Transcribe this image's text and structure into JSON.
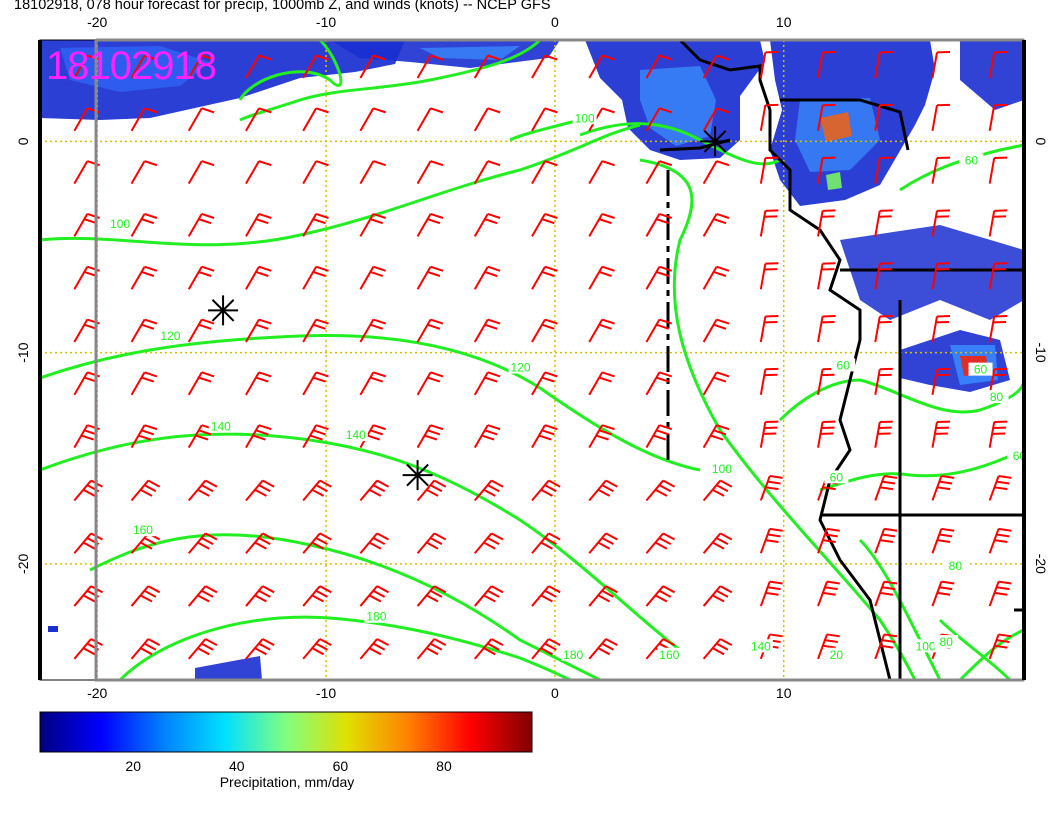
{
  "title": "18102918, 078 hour forecast for precip, 1000mb Z, and winds (knots) -- NCEP GFS",
  "timestamp_overlay": "18102918",
  "map": {
    "x_ticks": [
      "-20",
      "-10",
      "0",
      "10"
    ],
    "y_ticks": [
      "0",
      "-10",
      "-20"
    ],
    "lon_range": [
      -22.5,
      20.5
    ],
    "lat_range": [
      4.8,
      -25.5
    ],
    "grid_color": "#d8c000",
    "wind_barb_color": "#ff0000",
    "height_contour_color": "#22ee22",
    "coastline_color": "#000000",
    "contour_labels": [
      {
        "text": "100",
        "lon": -19.0,
        "lat": -4.0
      },
      {
        "text": "120",
        "lon": -16.8,
        "lat": -9.3
      },
      {
        "text": "140",
        "lon": -14.6,
        "lat": -13.6
      },
      {
        "text": "160",
        "lon": -18.0,
        "lat": -18.5
      },
      {
        "text": "180",
        "lon": -7.8,
        "lat": -22.6
      },
      {
        "text": "120",
        "lon": -1.5,
        "lat": -10.8
      },
      {
        "text": "140",
        "lon": -8.7,
        "lat": -14.0
      },
      {
        "text": "100",
        "lon": 1.3,
        "lat": 1.0
      },
      {
        "text": "100",
        "lon": 7.3,
        "lat": -15.6
      },
      {
        "text": "160",
        "lon": 5.0,
        "lat": -24.4
      },
      {
        "text": "140",
        "lon": 9.0,
        "lat": -24.0
      },
      {
        "text": "180",
        "lon": 0.8,
        "lat": -24.4
      },
      {
        "text": "60",
        "lon": 12.6,
        "lat": -10.7
      },
      {
        "text": "60",
        "lon": 18.6,
        "lat": -10.9
      },
      {
        "text": "80",
        "lon": 19.3,
        "lat": -12.2
      },
      {
        "text": "60",
        "lon": 12.3,
        "lat": -16.0
      },
      {
        "text": "60",
        "lon": 20.3,
        "lat": -15.0
      },
      {
        "text": "20",
        "lon": 12.3,
        "lat": -24.4
      },
      {
        "text": "100",
        "lon": 16.2,
        "lat": -24.0
      },
      {
        "text": "80",
        "lon": 17.1,
        "lat": -23.8
      },
      {
        "text": "80",
        "lon": 17.5,
        "lat": -20.2
      },
      {
        "text": "60",
        "lon": 18.2,
        "lat": -1.0
      }
    ],
    "low_center_markers": [
      {
        "lon": -14.5,
        "lat": -8.0
      },
      {
        "lon": -6.0,
        "lat": -15.8
      },
      {
        "lon": 7.0,
        "lat": 0.0
      }
    ]
  },
  "colorbar": {
    "label": "Precipitation, mm/day",
    "ticks": [
      "20",
      "40",
      "60",
      "80"
    ],
    "range": [
      2,
      97
    ],
    "stops": [
      "#000080",
      "#0000ff",
      "#0080ff",
      "#00e0ff",
      "#80ff80",
      "#e0e000",
      "#ff8000",
      "#ff0000",
      "#800000"
    ]
  }
}
